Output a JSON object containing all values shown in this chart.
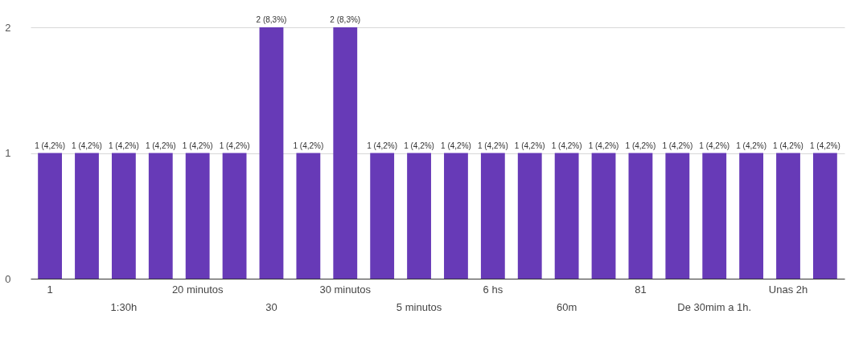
{
  "chart_data": {
    "type": "bar",
    "categories": [
      "1",
      null,
      "1:30h",
      null,
      "20 minutos",
      null,
      "30",
      null,
      "30 minutos",
      null,
      "5 minutos",
      null,
      "6 hs",
      null,
      "60m",
      null,
      "81",
      null,
      "De 30mim a 1h.",
      null,
      "Unas 2h",
      null
    ],
    "values": [
      1,
      1,
      1,
      1,
      1,
      1,
      2,
      1,
      2,
      1,
      1,
      1,
      1,
      1,
      1,
      1,
      1,
      1,
      1,
      1,
      1,
      1
    ],
    "value_labels": [
      "1 (4,2%)",
      "1 (4,2%)",
      "1 (4,2%)",
      "1 (4,2%)",
      "1 (4,2%)",
      "1 (4,2%)",
      "2 (8,3%)",
      "1 (4,2%)",
      "2 (8,3%)",
      "1 (4,2%)",
      "1 (4,2%)",
      "1 (4,2%)",
      "1 (4,2%)",
      "1 (4,2%)",
      "1 (4,2%)",
      "1 (4,2%)",
      "1 (4,2%)",
      "1 (4,2%)",
      "1 (4,2%)",
      "1 (4,2%)",
      "1 (4,2%)",
      "1 (4,2%)"
    ],
    "color": "#673ab7",
    "ylim": [
      0,
      2
    ],
    "yticks": [
      0,
      1,
      2
    ],
    "grid": "y"
  }
}
